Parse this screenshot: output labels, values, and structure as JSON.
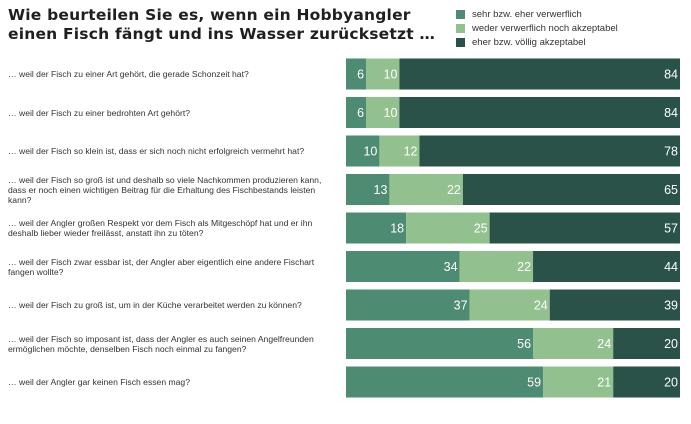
{
  "chart_data": {
    "type": "bar",
    "orientation": "horizontal",
    "stacked": true,
    "title": "Wie beurteilen Sie es, wenn ein Hobbyangler einen Fisch fängt und ins Wasser zurücksetzt …",
    "legend_position": "top-right",
    "grid": false,
    "xlim": [
      0,
      100
    ],
    "categories": [
      "… weil der Fisch zu einer Art gehört, die gerade Schonzeit hat?",
      "… weil der Fisch zu einer bedrohten Art gehört?",
      "… weil der Fisch so klein ist, dass er sich noch nicht erfolgreich vermehrt hat?",
      "… weil der Fisch so groß ist und deshalb so viele Nachkommen produzieren kann, dass er noch einen wichtigen Beitrag für die Erhaltung des Fischbestands leisten kann?",
      "… weil der Angler großen Respekt vor dem Fisch als Mitgeschöpf hat und er ihn deshalb lieber wieder freilässt, anstatt ihn zu töten?",
      "… weil der Fisch zwar essbar ist, der Angler aber eigentlich eine andere Fischart fangen wollte?",
      "… weil der Fisch zu groß ist, um in der Küche verarbeitet werden zu können?",
      "… weil der Fisch so imposant ist, dass der Angler es auch seinen Angelfreunden ermöglichen möchte, denselben Fisch noch einmal zu fangen?",
      "… weil der Angler gar keinen Fisch essen mag?"
    ],
    "series": [
      {
        "name": "sehr bzw. eher verwerflich",
        "color": "#4e8b73",
        "values": [
          6,
          6,
          10,
          13,
          18,
          34,
          37,
          56,
          59
        ]
      },
      {
        "name": "weder verwerflich noch akzeptabel",
        "color": "#93c08f",
        "values": [
          10,
          10,
          12,
          22,
          25,
          22,
          24,
          24,
          21
        ]
      },
      {
        "name": "eher bzw. völlig akzeptabel",
        "color": "#2a5248",
        "values": [
          84,
          84,
          78,
          65,
          57,
          44,
          39,
          20,
          20
        ]
      }
    ]
  }
}
